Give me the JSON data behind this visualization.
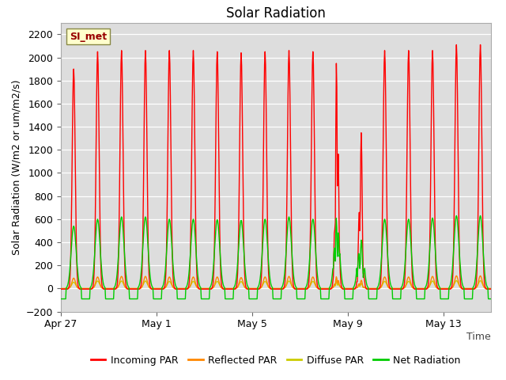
{
  "title": "Solar Radiation",
  "ylabel": "Solar Radiation (W/m2 or um/m2/s)",
  "xlabel": "Time",
  "ylim": [
    -200,
    2300
  ],
  "yticks": [
    -200,
    0,
    200,
    400,
    600,
    800,
    1000,
    1200,
    1400,
    1600,
    1800,
    2000,
    2200
  ],
  "xtick_labels": [
    "Apr 27",
    "May 1",
    "May 5",
    "May 9",
    "May 13"
  ],
  "legend": [
    {
      "label": "Incoming PAR",
      "color": "#ff0000"
    },
    {
      "label": "Reflected PAR",
      "color": "#ff8800"
    },
    {
      "label": "Diffuse PAR",
      "color": "#cccc00"
    },
    {
      "label": "Net Radiation",
      "color": "#00cc00"
    }
  ],
  "annotation_text": "SI_met",
  "annotation_color": "#990000",
  "annotation_bg": "#ffffcc",
  "annotation_border": "#888844",
  "bg_color": "#dddddd",
  "n_days": 18,
  "dt_hours": 0.5,
  "title_fontsize": 12,
  "axis_fontsize": 9,
  "tick_fontsize": 9,
  "line_width": 1.0
}
